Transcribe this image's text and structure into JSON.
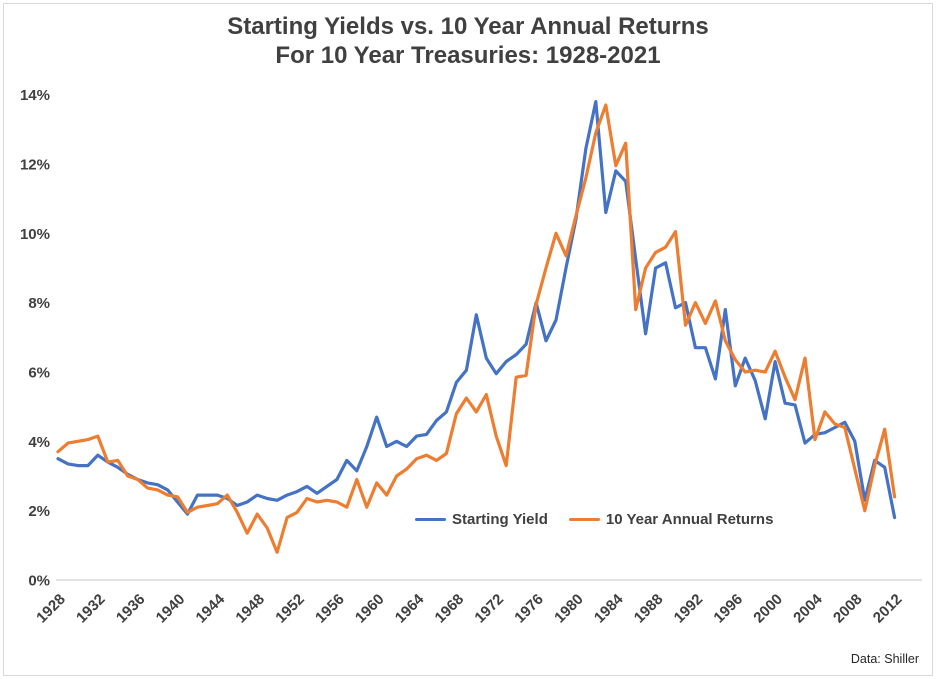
{
  "page": {
    "background_color": "#ffffff",
    "border_color": "#d9d9d9"
  },
  "chart_data": {
    "type": "line",
    "title": "Starting Yields vs. 10 Year Annual Returns For 10 Year Treasuries: 1928-2021",
    "title_lines": [
      "Starting Yields vs. 10 Year Annual Returns",
      "For 10 Year Treasuries: 1928-2021"
    ],
    "source": "Data: Shiller",
    "xlabel": "",
    "ylabel": "",
    "ylim": [
      0,
      14
    ],
    "grid": "baseline-only",
    "legend_position": "inside-bottom-center",
    "axis_color": "#d9d9d9",
    "label_color": "#404040",
    "y_tick_labels": [
      "0%",
      "2%",
      "4%",
      "6%",
      "8%",
      "10%",
      "12%",
      "14%"
    ],
    "y_tick_values": [
      0,
      2,
      4,
      6,
      8,
      10,
      12,
      14
    ],
    "x_tick_labels": [
      "1928",
      "1932",
      "1936",
      "1940",
      "1944",
      "1948",
      "1952",
      "1956",
      "1960",
      "1964",
      "1968",
      "1972",
      "1976",
      "1980",
      "1984",
      "1988",
      "1992",
      "1996",
      "2000",
      "2004",
      "2008",
      "2012"
    ],
    "x": [
      1928,
      1929,
      1930,
      1931,
      1932,
      1933,
      1934,
      1935,
      1936,
      1937,
      1938,
      1939,
      1940,
      1941,
      1942,
      1943,
      1944,
      1945,
      1946,
      1947,
      1948,
      1949,
      1950,
      1951,
      1952,
      1953,
      1954,
      1955,
      1956,
      1957,
      1958,
      1959,
      1960,
      1961,
      1962,
      1963,
      1964,
      1965,
      1966,
      1967,
      1968,
      1969,
      1970,
      1971,
      1972,
      1973,
      1974,
      1975,
      1976,
      1977,
      1978,
      1979,
      1980,
      1981,
      1982,
      1983,
      1984,
      1985,
      1986,
      1987,
      1988,
      1989,
      1990,
      1991,
      1992,
      1993,
      1994,
      1995,
      1996,
      1997,
      1998,
      1999,
      2000,
      2001,
      2002,
      2003,
      2004,
      2005,
      2006,
      2007,
      2008,
      2009,
      2010,
      2011,
      2012
    ],
    "series": [
      {
        "name": "Starting Yield",
        "color": "#4472c4",
        "values": [
          3.5,
          3.35,
          3.3,
          3.3,
          3.6,
          3.4,
          3.25,
          3.05,
          2.9,
          2.8,
          2.75,
          2.6,
          2.25,
          1.9,
          2.45,
          2.45,
          2.45,
          2.35,
          2.15,
          2.25,
          2.45,
          2.35,
          2.3,
          2.45,
          2.55,
          2.7,
          2.5,
          2.7,
          2.9,
          3.45,
          3.15,
          3.85,
          4.7,
          3.85,
          4.0,
          3.85,
          4.15,
          4.2,
          4.6,
          4.85,
          5.7,
          6.05,
          7.65,
          6.4,
          5.95,
          6.3,
          6.5,
          6.8,
          8.0,
          6.9,
          7.5,
          9.0,
          10.4,
          12.45,
          13.8,
          10.6,
          11.8,
          11.5,
          9.25,
          7.1,
          9.0,
          9.15,
          7.85,
          8.0,
          6.7,
          6.7,
          5.8,
          7.8,
          5.6,
          6.4,
          5.75,
          4.65,
          6.3,
          5.1,
          5.05,
          3.95,
          4.2,
          4.25,
          4.4,
          4.55,
          4.0,
          2.3,
          3.45,
          3.25,
          1.8
        ]
      },
      {
        "name": "10 Year Annual Returns",
        "color": "#ed7d31",
        "values": [
          3.7,
          3.95,
          4.0,
          4.05,
          4.15,
          3.4,
          3.45,
          3.0,
          2.9,
          2.65,
          2.6,
          2.45,
          2.4,
          1.95,
          2.1,
          2.15,
          2.2,
          2.45,
          1.95,
          1.35,
          1.9,
          1.5,
          0.8,
          1.8,
          1.95,
          2.35,
          2.25,
          2.3,
          2.25,
          2.1,
          2.9,
          2.1,
          2.8,
          2.45,
          3.0,
          3.2,
          3.5,
          3.6,
          3.45,
          3.65,
          4.8,
          5.25,
          4.85,
          5.35,
          4.15,
          3.3,
          5.85,
          5.9,
          7.95,
          9.0,
          10.0,
          9.35,
          10.5,
          11.6,
          12.9,
          13.7,
          11.95,
          12.6,
          7.8,
          9.0,
          9.45,
          9.6,
          10.05,
          7.35,
          8.0,
          7.4,
          8.05,
          6.9,
          6.35,
          6.0,
          6.05,
          6.0,
          6.6,
          5.85,
          5.2,
          6.4,
          4.05,
          4.85,
          4.5,
          4.4,
          3.2,
          2.0,
          3.3,
          4.35,
          2.4
        ]
      }
    ]
  }
}
